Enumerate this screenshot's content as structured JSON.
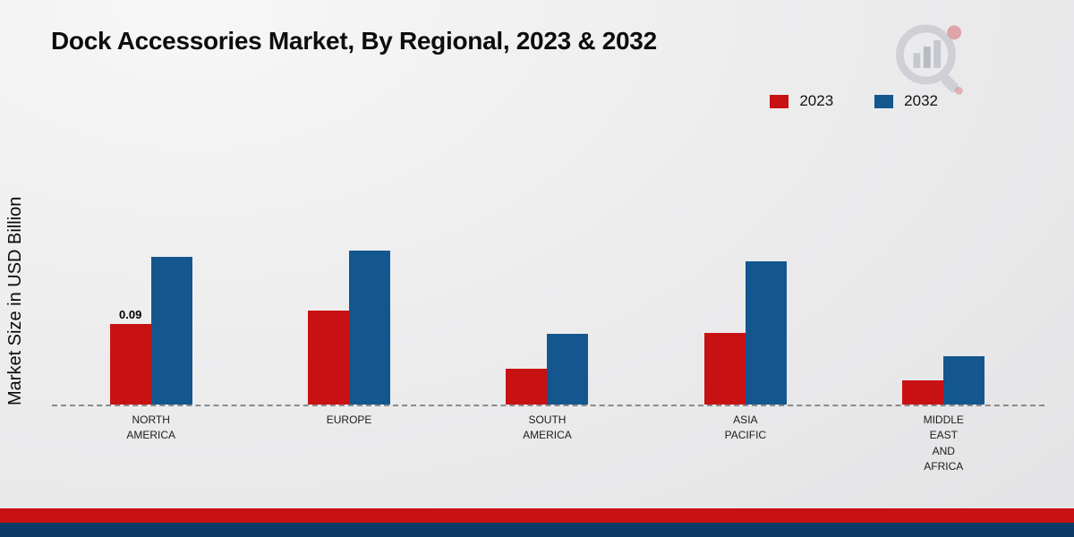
{
  "chart_data": {
    "type": "bar",
    "title": "Dock Accessories Market, By Regional, 2023 & 2032",
    "ylabel": "Market Size in USD Billion",
    "categories": [
      "NORTH AMERICA",
      "EUROPE",
      "SOUTH AMERICA",
      "ASIA PACIFIC",
      "MIDDLE EAST AND AFRICA"
    ],
    "series": [
      {
        "name": "2023",
        "color": "#c81113",
        "values": [
          0.09,
          0.105,
          0.04,
          0.08,
          0.027
        ]
      },
      {
        "name": "2032",
        "color": "#14568e",
        "values": [
          0.165,
          0.172,
          0.079,
          0.16,
          0.054
        ]
      }
    ],
    "annotations": [
      {
        "series": "2023",
        "category": "NORTH AMERICA",
        "text": "0.09"
      }
    ],
    "ylim": [
      0,
      0.2
    ],
    "grid": false,
    "legend_position": "top-right",
    "baseline_style": "dashed"
  },
  "icons": {
    "watermark": "bar-chart-magnifier-logo"
  },
  "footer": {
    "red_strip_color": "#c81113",
    "navy_strip_color": "#0d3a66"
  }
}
